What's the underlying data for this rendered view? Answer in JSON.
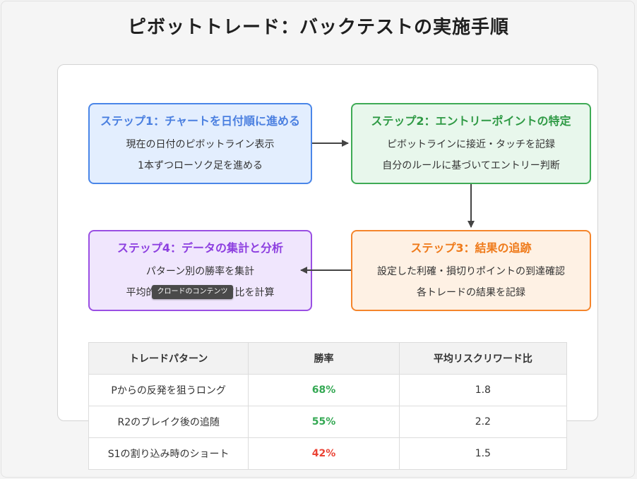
{
  "title": "ピボットトレード：バックテストの実施手順",
  "steps": [
    {
      "title": "ステップ1：チャートを日付順に進める",
      "lines": [
        "現在の日付のピボットライン表示",
        "1本ずつローソク足を進める"
      ]
    },
    {
      "title": "ステップ2：エントリーポイントの特定",
      "lines": [
        "ピボットラインに接近・タッチを記録",
        "自分のルールに基づいてエントリー判断"
      ]
    },
    {
      "title": "ステップ3：結果の追跡",
      "lines": [
        "設定した利確・損切りポイントの到達確認",
        "各トレードの結果を記録"
      ]
    },
    {
      "title": "ステップ4：データの集計と分析",
      "lines": [
        "パターン別の勝率を集計",
        "平均的なリスクリワード比を計算"
      ]
    }
  ],
  "tooltip": "クロードのコンテンツ",
  "table": {
    "headers": [
      "トレードパターン",
      "勝率",
      "平均リスクリワード比"
    ],
    "rows": [
      {
        "pattern": "Pからの反発を狙うロング",
        "win_rate": "68%",
        "rr": "1.8",
        "rate_color": "#34a853"
      },
      {
        "pattern": "R2のブレイク後の追随",
        "win_rate": "55%",
        "rr": "2.2",
        "rate_color": "#34a853"
      },
      {
        "pattern": "S1の割り込み時のショート",
        "win_rate": "42%",
        "rr": "1.5",
        "rate_color": "#ea4335"
      }
    ]
  },
  "colors": {
    "step1": "#4a86e8",
    "step2": "#3eab55",
    "step3": "#f5852b",
    "step4": "#9a4fe3",
    "arrow": "#444444"
  }
}
